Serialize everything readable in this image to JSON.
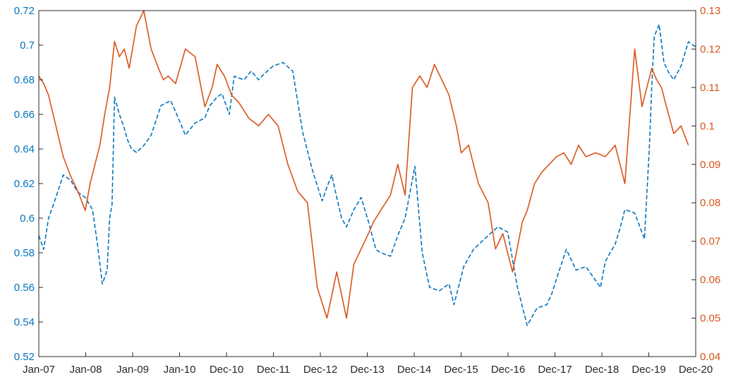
{
  "chart_data": {
    "type": "line",
    "title": "",
    "xlabel": "",
    "ylabel": "",
    "grid": false,
    "x_tick_labels": [
      "Jan-07",
      "Jan-08",
      "Jan-09",
      "Jan-10",
      "Dec-10",
      "Dec-11",
      "Dec-12",
      "Dec-13",
      "Dec-14",
      "Dec-15",
      "Dec-16",
      "Dec-17",
      "Dec-18",
      "Dec-19",
      "Dec-20"
    ],
    "y_left": {
      "range": [
        0.52,
        0.72
      ],
      "ticks": [
        "0.52",
        "0.54",
        "0.56",
        "0.58",
        "0.6",
        "0.62",
        "0.64",
        "0.66",
        "0.68",
        "0.7",
        "0.72"
      ],
      "color": "#0072BD"
    },
    "y_right": {
      "range": [
        0.04,
        0.13
      ],
      "ticks": [
        "0.04",
        "0.05",
        "0.06",
        "0.07",
        "0.08",
        "0.09",
        "0.1",
        "0.11",
        "0.12",
        "0.13"
      ],
      "color": "#D95319"
    },
    "series": [
      {
        "axis": "left",
        "style": "dashed",
        "color": "#0072BD",
        "x": [
          2007.0,
          2007.1,
          2007.2,
          2007.35,
          2007.5,
          2007.65,
          2007.8,
          2007.95,
          2008.1,
          2008.2,
          2008.3,
          2008.4,
          2008.45,
          2008.5,
          2008.55,
          2008.65,
          2008.75,
          2008.82,
          2008.9,
          2009.0,
          2009.15,
          2009.3,
          2009.5,
          2009.7,
          2009.9,
          2010.0,
          2010.2,
          2010.4,
          2010.5,
          2010.65,
          2010.75,
          2010.9,
          2011.0,
          2011.2,
          2011.35,
          2011.5,
          2011.6,
          2011.8,
          2012.0,
          2012.2,
          2012.4,
          2012.6,
          2012.8,
          2012.9,
          2013.0,
          2013.1,
          2013.2,
          2013.3,
          2013.45,
          2013.6,
          2013.75,
          2013.9,
          2014.0,
          2014.2,
          2014.35,
          2014.5,
          2014.7,
          2014.85,
          2015.0,
          2015.2,
          2015.4,
          2015.5,
          2015.7,
          2015.9,
          2016.05,
          2016.2,
          2016.4,
          2016.6,
          2016.8,
          2017.0,
          2017.2,
          2017.4,
          2017.5,
          2017.6,
          2017.8,
          2018.0,
          2018.2,
          2018.35,
          2018.5,
          2018.6,
          2018.8,
          2018.9,
          2019.0,
          2019.2,
          2019.4,
          2019.5,
          2019.55,
          2019.6,
          2019.7,
          2019.8,
          2019.9,
          2020.0,
          2020.15,
          2020.3,
          2020.45
        ],
        "y": [
          0.59,
          0.582,
          0.6,
          0.612,
          0.625,
          0.622,
          0.615,
          0.612,
          0.605,
          0.585,
          0.562,
          0.57,
          0.6,
          0.608,
          0.67,
          0.66,
          0.652,
          0.645,
          0.64,
          0.638,
          0.642,
          0.648,
          0.665,
          0.668,
          0.655,
          0.648,
          0.655,
          0.658,
          0.665,
          0.67,
          0.672,
          0.66,
          0.682,
          0.68,
          0.685,
          0.68,
          0.683,
          0.688,
          0.69,
          0.685,
          0.65,
          0.628,
          0.61,
          0.618,
          0.625,
          0.612,
          0.6,
          0.595,
          0.605,
          0.612,
          0.598,
          0.582,
          0.58,
          0.578,
          0.59,
          0.6,
          0.63,
          0.58,
          0.56,
          0.558,
          0.562,
          0.55,
          0.572,
          0.582,
          0.586,
          0.59,
          0.595,
          0.592,
          0.56,
          0.538,
          0.548,
          0.55,
          0.556,
          0.565,
          0.582,
          0.57,
          0.572,
          0.566,
          0.56,
          0.575,
          0.585,
          0.594,
          0.605,
          0.603,
          0.588,
          0.64,
          0.676,
          0.705,
          0.712,
          0.69,
          0.684,
          0.68,
          0.688,
          0.702,
          0.699
        ]
      },
      {
        "axis": "right",
        "style": "solid",
        "color": "#D95319",
        "x": [
          2007.0,
          2007.1,
          2007.2,
          2007.35,
          2007.5,
          2007.65,
          2007.8,
          2007.95,
          2008.05,
          2008.15,
          2008.25,
          2008.35,
          2008.45,
          2008.55,
          2008.65,
          2008.75,
          2008.85,
          2009.0,
          2009.15,
          2009.3,
          2009.45,
          2009.55,
          2009.65,
          2009.8,
          2010.0,
          2010.2,
          2010.4,
          2010.55,
          2010.65,
          2010.8,
          2010.95,
          2011.1,
          2011.3,
          2011.5,
          2011.7,
          2011.9,
          2012.1,
          2012.3,
          2012.5,
          2012.7,
          2012.9,
          2013.1,
          2013.3,
          2013.45,
          2013.6,
          2013.75,
          2013.85,
          2014.0,
          2014.2,
          2014.35,
          2014.5,
          2014.65,
          2014.8,
          2014.95,
          2015.1,
          2015.25,
          2015.4,
          2015.55,
          2015.65,
          2015.8,
          2016.0,
          2016.2,
          2016.35,
          2016.5,
          2016.7,
          2016.9,
          2017.0,
          2017.15,
          2017.3,
          2017.45,
          2017.6,
          2017.75,
          2017.9,
          2018.05,
          2018.2,
          2018.4,
          2018.6,
          2018.8,
          2019.0,
          2019.2,
          2019.35,
          2019.45,
          2019.55,
          2019.65,
          2019.75,
          2019.85,
          2020.0,
          2020.15,
          2020.3
        ],
        "y": [
          0.113,
          0.111,
          0.108,
          0.1,
          0.092,
          0.087,
          0.083,
          0.078,
          0.085,
          0.09,
          0.095,
          0.103,
          0.11,
          0.122,
          0.118,
          0.12,
          0.115,
          0.126,
          0.13,
          0.12,
          0.115,
          0.112,
          0.113,
          0.111,
          0.12,
          0.118,
          0.105,
          0.11,
          0.116,
          0.113,
          0.108,
          0.106,
          0.102,
          0.1,
          0.103,
          0.1,
          0.09,
          0.083,
          0.08,
          0.058,
          0.05,
          0.062,
          0.05,
          0.064,
          0.068,
          0.072,
          0.075,
          0.078,
          0.082,
          0.09,
          0.082,
          0.11,
          0.113,
          0.11,
          0.116,
          0.112,
          0.108,
          0.1,
          0.093,
          0.095,
          0.085,
          0.08,
          0.068,
          0.072,
          0.062,
          0.075,
          0.078,
          0.085,
          0.088,
          0.09,
          0.092,
          0.093,
          0.09,
          0.095,
          0.092,
          0.093,
          0.092,
          0.095,
          0.085,
          0.12,
          0.105,
          0.11,
          0.115,
          0.112,
          0.11,
          0.105,
          0.098,
          0.1,
          0.095
        ]
      }
    ]
  }
}
